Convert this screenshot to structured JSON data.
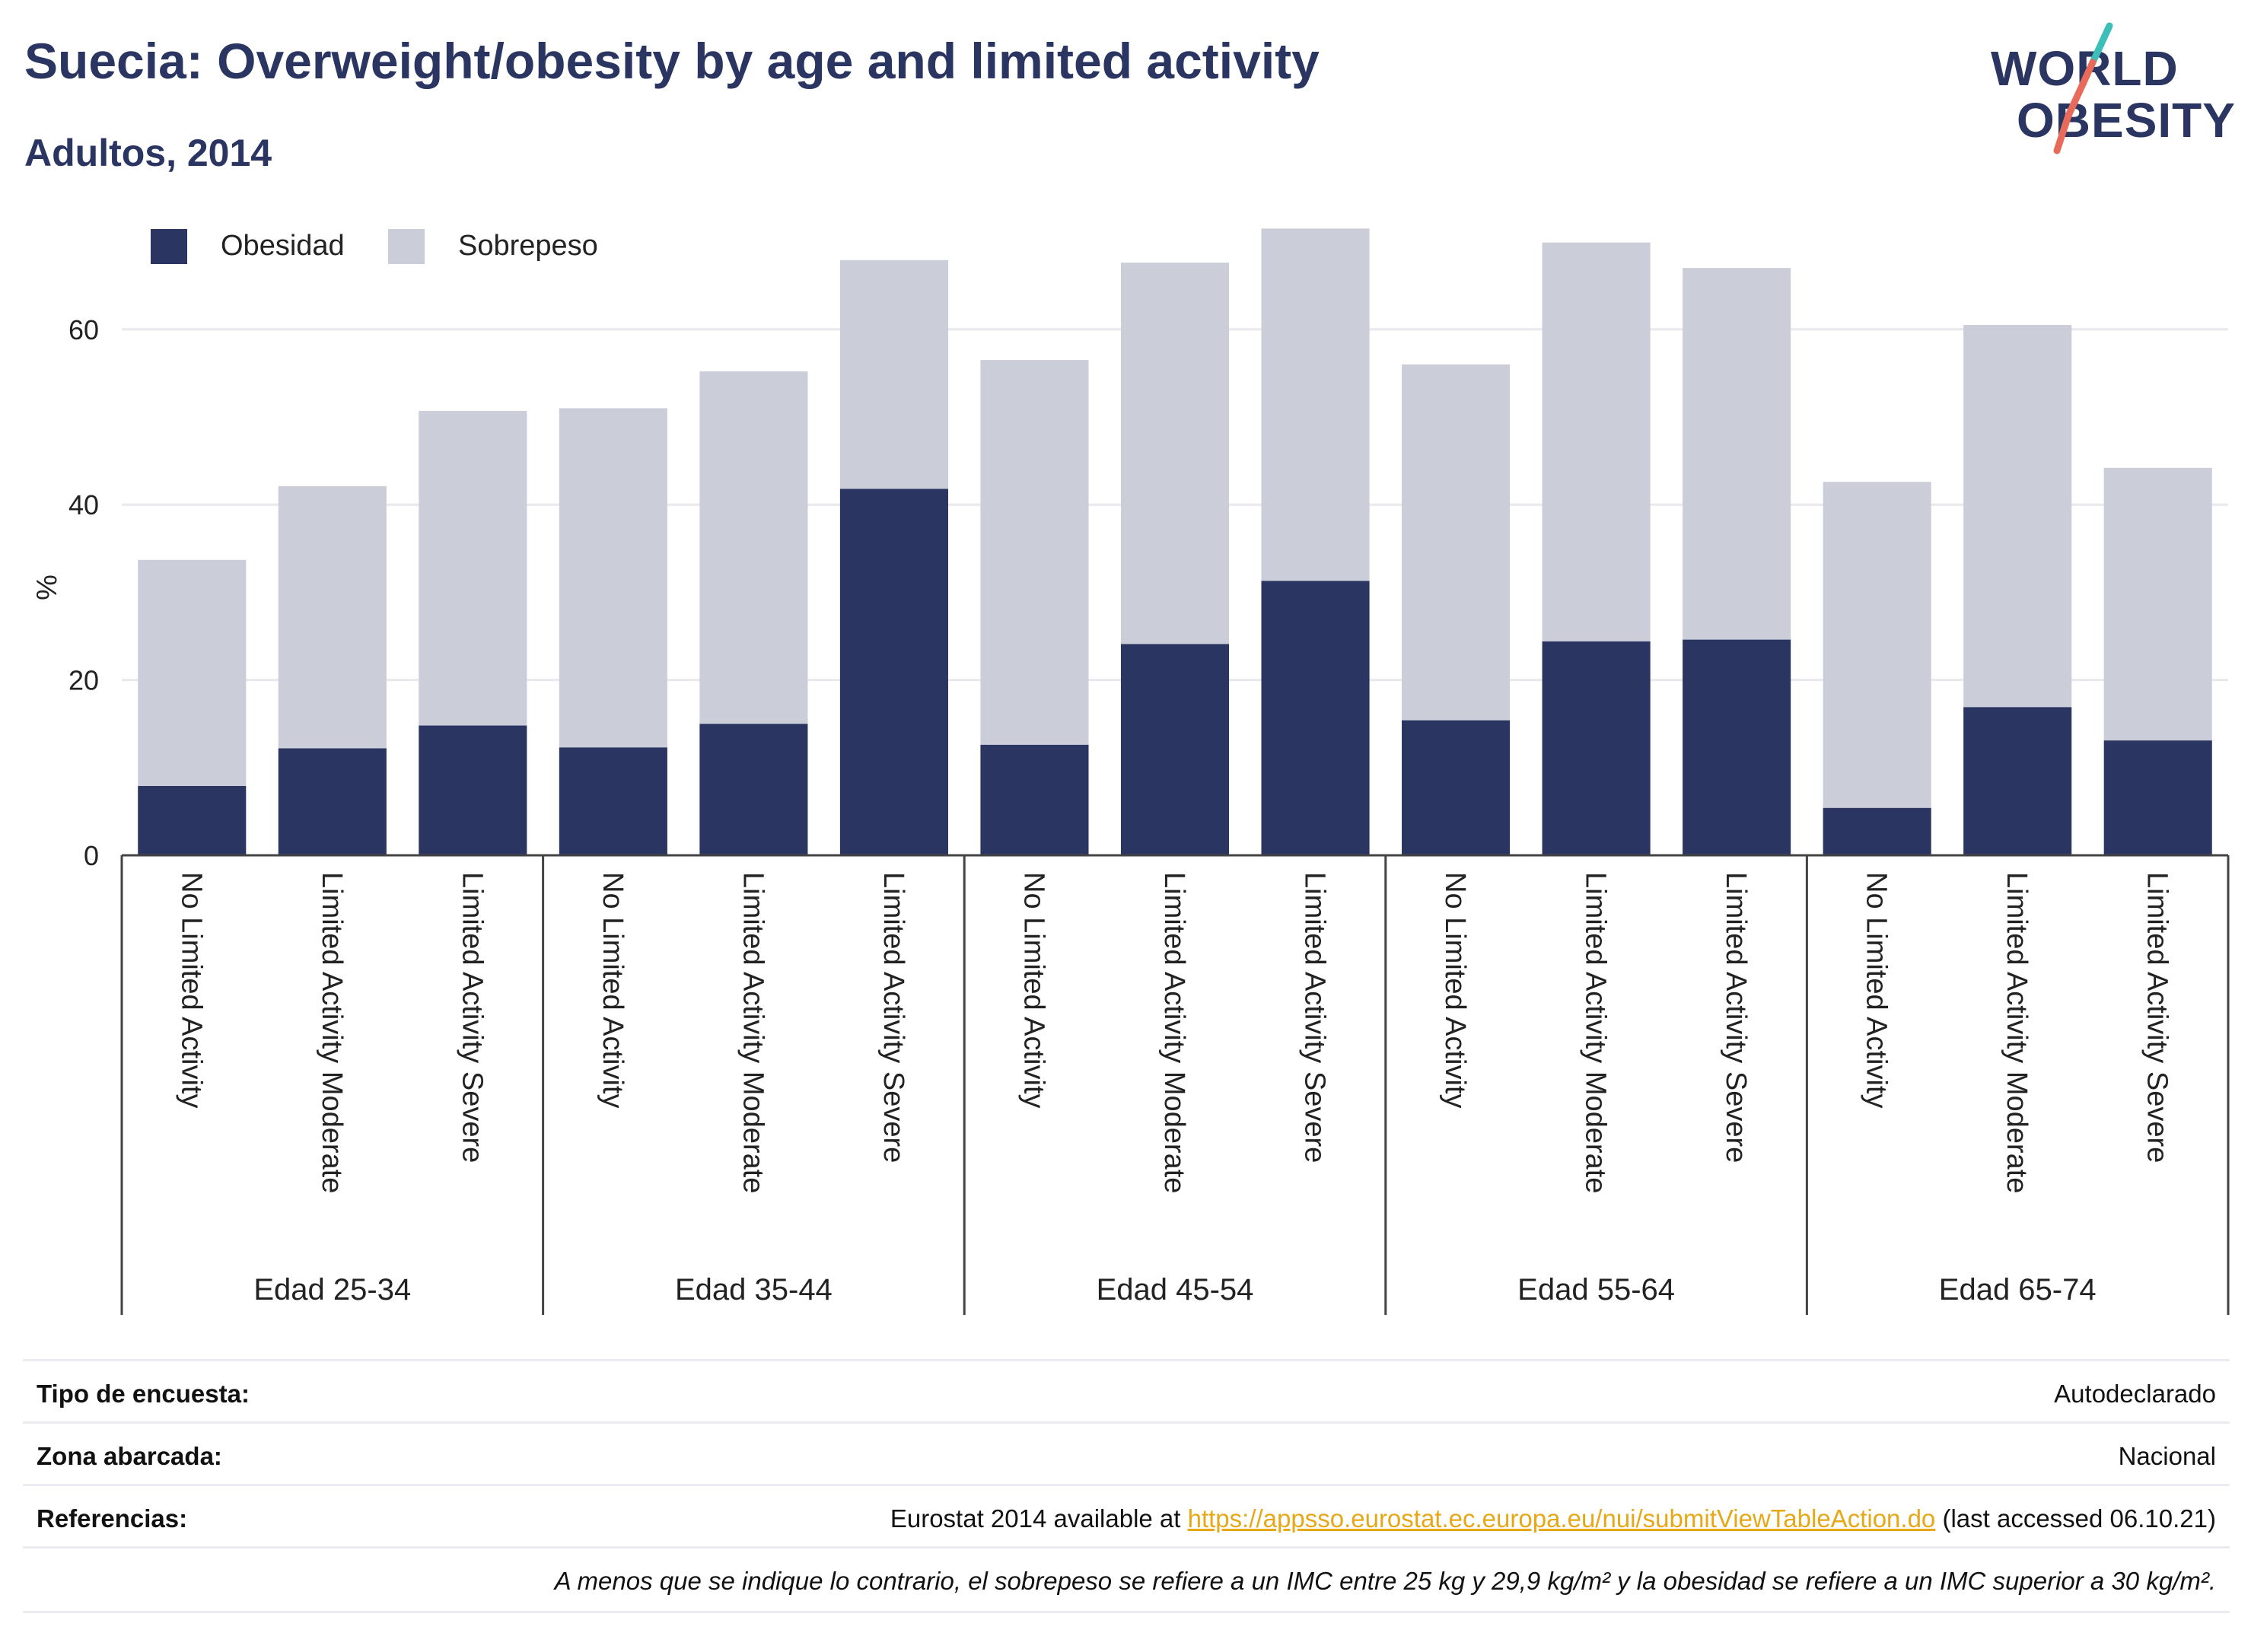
{
  "title": "Suecia: Overweight/obesity by age and limited activity",
  "subtitle": "Adultos, 2014",
  "logo": {
    "line1": "WORLD",
    "line2": "OBESITY"
  },
  "colors": {
    "obesidad": "#2a3561",
    "sobrepeso": "#cbcdd9",
    "title": "#2a3561",
    "logo_teal": "#3bbfb8",
    "logo_coral": "#e86a5b",
    "link": "#e6a817"
  },
  "legend": {
    "items": [
      {
        "label": "Obesidad"
      },
      {
        "label": "Sobrepeso"
      }
    ]
  },
  "chart_data": {
    "type": "bar",
    "stacked": true,
    "ylabel": "%",
    "ylim": [
      0,
      75
    ],
    "yticks": [
      0,
      20,
      40,
      60
    ],
    "grid": true,
    "legend_position": "top-left",
    "groups": [
      "Edad 25-34",
      "Edad 35-44",
      "Edad 45-54",
      "Edad 55-64",
      "Edad 65-74"
    ],
    "categories": [
      "No Limited Activity",
      "Limited Activity Moderate",
      "Limited Activity Severe"
    ],
    "series": [
      {
        "name": "Obesidad",
        "values": [
          [
            7.9,
            12.2,
            14.8
          ],
          [
            12.3,
            15.0,
            41.8
          ],
          [
            12.6,
            24.1,
            31.3
          ],
          [
            15.4,
            24.4,
            24.6
          ],
          [
            5.4,
            16.9,
            13.1
          ]
        ]
      },
      {
        "name": "Sobrepeso",
        "values": [
          [
            25.8,
            29.9,
            35.9
          ],
          [
            38.7,
            40.2,
            26.1
          ],
          [
            43.9,
            43.5,
            40.2
          ],
          [
            40.6,
            45.5,
            42.4
          ],
          [
            37.2,
            43.6,
            31.1
          ]
        ]
      }
    ]
  },
  "info": {
    "rows": [
      {
        "label": "Tipo de encuesta:",
        "value": "Autodeclarado"
      },
      {
        "label": "Zona abarcada:",
        "value": "Nacional"
      },
      {
        "label": "Referencias:",
        "value_prefix": "Eurostat 2014 available at ",
        "link": "https://appsso.eurostat.ec.europa.eu/nui/submitViewTableAction.do",
        "value_suffix": " (last accessed 06.10.21)"
      }
    ],
    "note": "A menos que se indique lo contrario, el sobrepeso se refiere a un IMC entre 25 kg y 29,9 kg/m² y la obesidad se refiere a un IMC superior a 30 kg/m²."
  }
}
